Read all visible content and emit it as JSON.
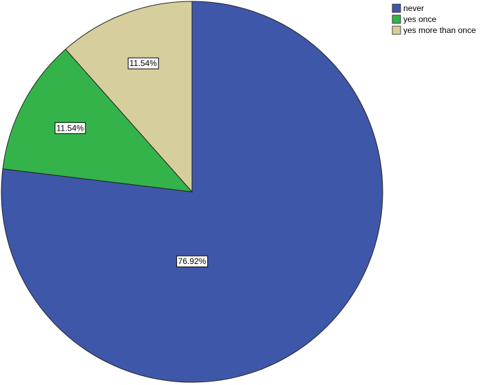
{
  "chart_data": {
    "type": "pie",
    "categories": [
      "never",
      "yes once",
      "yes more than once"
    ],
    "values": [
      76.92,
      11.54,
      11.54
    ],
    "value_labels": [
      "76.92%",
      "11.54%",
      "11.54%"
    ],
    "colors": [
      "#3f57a9",
      "#34b34a",
      "#d6cf9d"
    ],
    "legend": "top-right"
  }
}
